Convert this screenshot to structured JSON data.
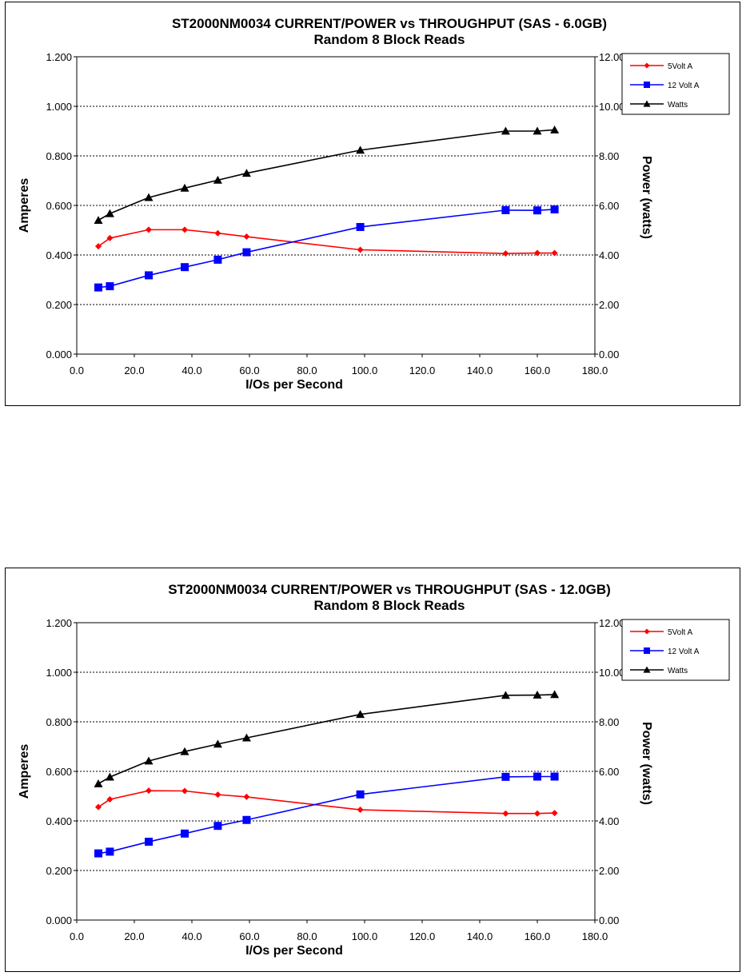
{
  "chart_data": [
    {
      "type": "line",
      "title": "ST2000NM0034 CURRENT/POWER vs THROUGHPUT (SAS - 6.0GB)",
      "subtitle": "Random 8 Block Reads",
      "xlabel": "I/Os per Second",
      "ylabel": "Amperes",
      "y2label": "Power (watts)",
      "xlim": [
        0,
        180
      ],
      "ylim": [
        0,
        1.2
      ],
      "y2lim": [
        0,
        12
      ],
      "x_ticks": [
        "0.0",
        "20.0",
        "40.0",
        "60.0",
        "80.0",
        "100.0",
        "120.0",
        "140.0",
        "160.0",
        "180.0"
      ],
      "y_ticks": [
        "0.000",
        "0.200",
        "0.400",
        "0.600",
        "0.800",
        "1.000",
        "1.200"
      ],
      "y2_ticks": [
        "0.00",
        "2.00",
        "4.00",
        "6.00",
        "8.00",
        "10.00",
        "12.00"
      ],
      "grid": "horizontal dashed",
      "legend_position": "top-right",
      "x": [
        7.5,
        11.5,
        25,
        37.5,
        49,
        59,
        98.5,
        149,
        160,
        166
      ],
      "series": [
        {
          "name": "5Volt A",
          "axis": "left",
          "color": "#ff0000",
          "marker": "diamond",
          "values": [
            0.435,
            0.468,
            0.502,
            0.502,
            0.488,
            0.474,
            0.421,
            0.406,
            0.408,
            0.408
          ]
        },
        {
          "name": "12 Volt A",
          "axis": "left",
          "color": "#0000ff",
          "marker": "square",
          "values": [
            0.269,
            0.274,
            0.318,
            0.351,
            0.381,
            0.411,
            0.513,
            0.581,
            0.58,
            0.584
          ]
        },
        {
          "name": "Watts",
          "axis": "right",
          "color": "#000000",
          "marker": "triangle",
          "values": [
            5.4,
            5.67,
            6.32,
            6.7,
            7.02,
            7.3,
            8.23,
            9.0,
            9.0,
            9.05
          ]
        }
      ]
    },
    {
      "type": "line",
      "title": "ST2000NM0034 CURRENT/POWER vs THROUGHPUT (SAS - 12.0GB)",
      "subtitle": "Random 8 Block Reads",
      "xlabel": "I/Os per Second",
      "ylabel": "Amperes",
      "y2label": "Power (watts)",
      "xlim": [
        0,
        180
      ],
      "ylim": [
        0,
        1.2
      ],
      "y2lim": [
        0,
        12
      ],
      "x_ticks": [
        "0.0",
        "20.0",
        "40.0",
        "60.0",
        "80.0",
        "100.0",
        "120.0",
        "140.0",
        "160.0",
        "180.0"
      ],
      "y_ticks": [
        "0.000",
        "0.200",
        "0.400",
        "0.600",
        "0.800",
        "1.000",
        "1.200"
      ],
      "y2_ticks": [
        "0.00",
        "2.00",
        "4.00",
        "6.00",
        "8.00",
        "10.00",
        "12.00"
      ],
      "grid": "horizontal dashed",
      "legend_position": "top-right",
      "x": [
        7.5,
        11.5,
        25,
        37.5,
        49,
        59,
        98.5,
        149,
        160,
        166
      ],
      "series": [
        {
          "name": "5Volt A",
          "axis": "left",
          "color": "#ff0000",
          "marker": "diamond",
          "values": [
            0.456,
            0.487,
            0.522,
            0.521,
            0.506,
            0.497,
            0.445,
            0.43,
            0.43,
            0.432
          ]
        },
        {
          "name": "12 Volt A",
          "axis": "left",
          "color": "#0000ff",
          "marker": "square",
          "values": [
            0.269,
            0.276,
            0.316,
            0.349,
            0.38,
            0.404,
            0.507,
            0.578,
            0.579,
            0.579
          ]
        },
        {
          "name": "Watts",
          "axis": "right",
          "color": "#000000",
          "marker": "triangle",
          "values": [
            5.5,
            5.77,
            6.42,
            6.8,
            7.1,
            7.35,
            8.3,
            9.07,
            9.08,
            9.1
          ]
        }
      ]
    }
  ]
}
